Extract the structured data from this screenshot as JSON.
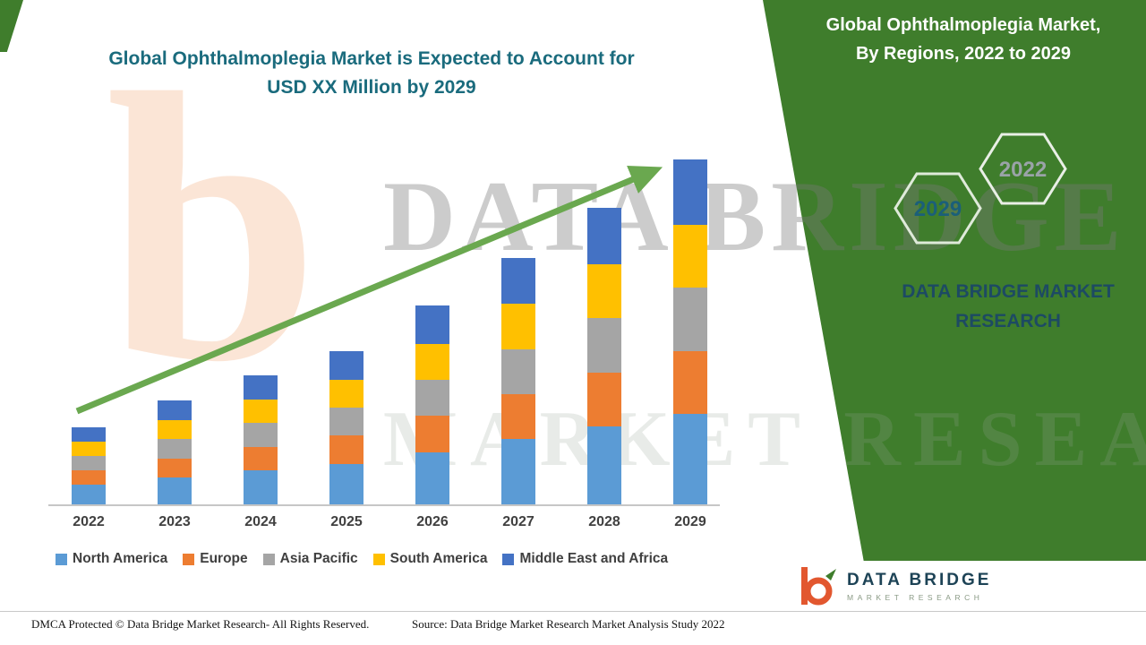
{
  "page": {
    "background": "#ffffff",
    "accent_green": "#3f7d2c",
    "arrow_green": "#6aa84f",
    "title_teal": "#1a6b7d"
  },
  "chart": {
    "title_line1": "Global Ophthalmoplegia Market is Expected to Account for",
    "title_line2": "USD XX Million by 2029"
  },
  "chart_data": {
    "type": "bar",
    "stacked": true,
    "title": "Global Ophthalmoplegia Market is Expected to Account for USD XX Million by 2029",
    "categories": [
      "2022",
      "2023",
      "2024",
      "2025",
      "2026",
      "2027",
      "2028",
      "2029"
    ],
    "series": [
      {
        "name": "North America",
        "color": "#5B9BD5",
        "values": [
          22,
          30,
          38,
          45,
          58,
          72,
          86,
          100
        ]
      },
      {
        "name": "Europe",
        "color": "#ED7D31",
        "values": [
          16,
          21,
          26,
          31,
          40,
          50,
          60,
          70
        ]
      },
      {
        "name": "Asia Pacific",
        "color": "#A5A5A5",
        "values": [
          16,
          21,
          26,
          31,
          40,
          50,
          60,
          70
        ]
      },
      {
        "name": "South America",
        "color": "#FFC000",
        "values": [
          16,
          21,
          26,
          31,
          40,
          50,
          60,
          70
        ]
      },
      {
        "name": "Middle East and Africa",
        "color": "#4472C4",
        "values": [
          15,
          22,
          27,
          32,
          42,
          51,
          62,
          72
        ]
      }
    ],
    "xlabel": "",
    "ylabel": "",
    "y_axis_visible": false,
    "values_note": "Relative stacked bar heights; actual values shown as USD XX Million (not disclosed), estimated from pixels",
    "legend_position": "bottom",
    "grid": false,
    "annotations": [
      "upward green trend arrow from 2022 bar to 2029 bar"
    ]
  },
  "watermark": {
    "line1": "DATA BRIDGE",
    "line2": "MARKET RESEARCH",
    "logo_glyph": "b"
  },
  "panel": {
    "title_line1": "Global Ophthalmoplegia Market,",
    "title_line2": "By Regions, 2022 to 2029",
    "hexagon_left_label": "2029",
    "hexagon_right_label": "2022",
    "brand_line1": "DATA BRIDGE MARKET",
    "brand_line2": "RESEARCH"
  },
  "footer": {
    "dmca": "DMCA Protected © Data Bridge Market Research- All Rights Reserved.",
    "source": "Source: Data Bridge Market Research Market Analysis Study 2022"
  },
  "logo": {
    "glyph": "b",
    "name": "DATA BRIDGE",
    "subtitle": "MARKET RESEARCH"
  }
}
